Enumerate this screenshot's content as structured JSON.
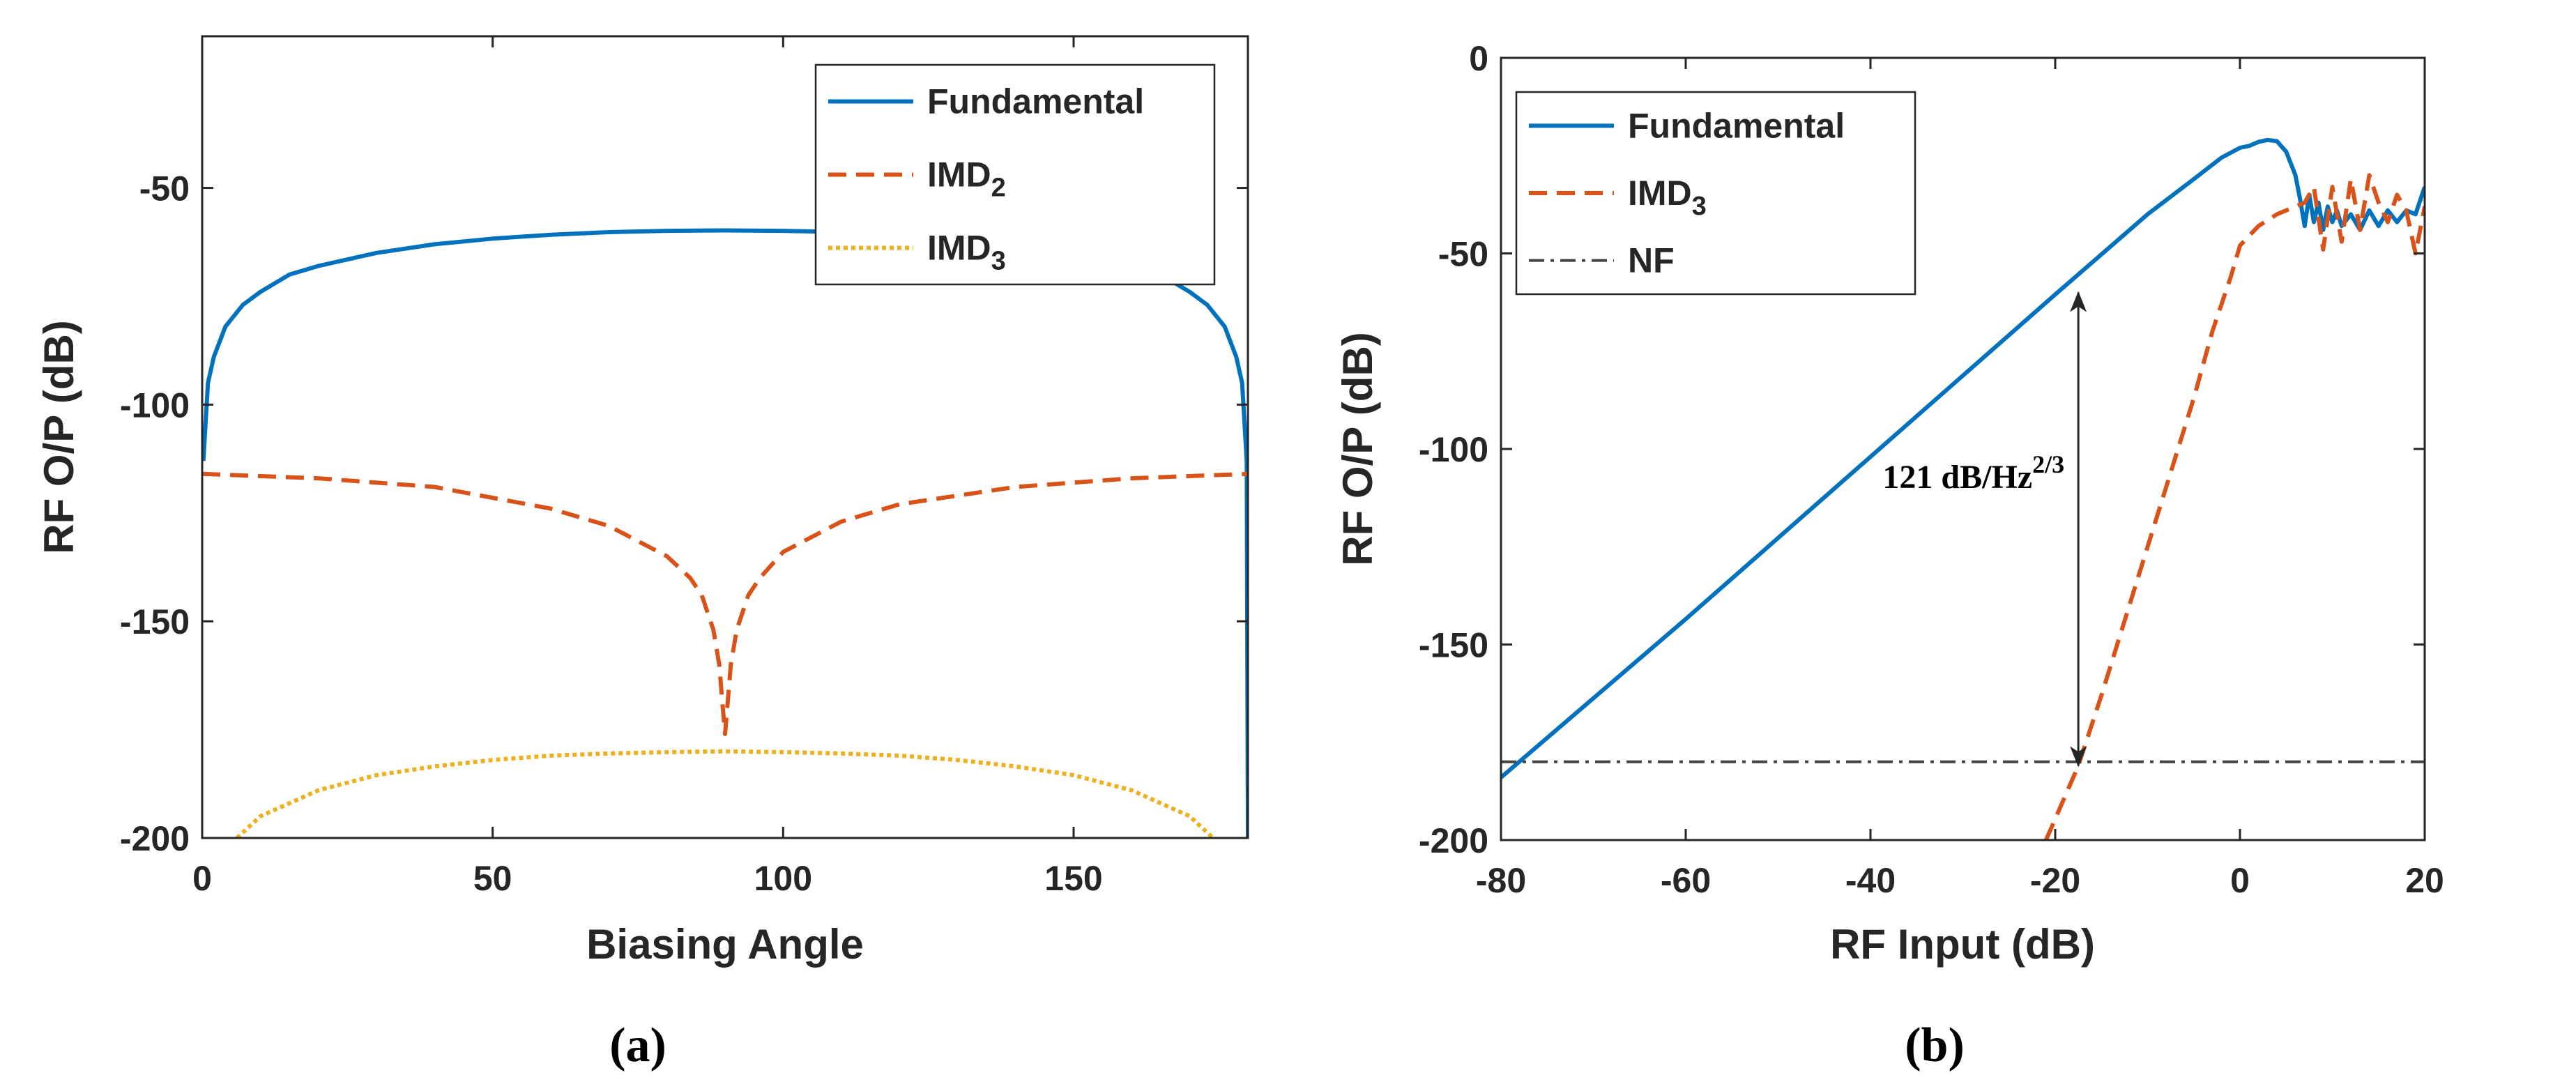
{
  "colors": {
    "fundamental": "#0072bd",
    "imd2": "#d95319",
    "imd3_a": "#edb120",
    "imd3_b": "#d95319",
    "nf": "#444444",
    "axis": "#262626"
  },
  "chart_data": [
    {
      "type": "line",
      "caption": "(a)",
      "xlabel": "Biasing Angle",
      "ylabel": "RF O/P (dB)",
      "xlim": [
        0,
        180
      ],
      "ylim": [
        -200,
        -15
      ],
      "xticks": [
        0,
        50,
        100,
        150
      ],
      "yticks": [
        -200,
        -150,
        -100,
        -50
      ],
      "grid": false,
      "legend_position": "top-right",
      "series": [
        {
          "name": "Fundamental",
          "style": "solid",
          "x": [
            0.2,
            1,
            2,
            4,
            7,
            10,
            15,
            20,
            30,
            40,
            50,
            60,
            70,
            80,
            90,
            100,
            110,
            120,
            130,
            140,
            150,
            160,
            165,
            170,
            173,
            176,
            178,
            179,
            179.8,
            180
          ],
          "y": [
            -113,
            -95,
            -89,
            -82,
            -77,
            -74,
            -70,
            -68,
            -65,
            -63,
            -61.7,
            -60.8,
            -60.2,
            -59.9,
            -59.8,
            -59.9,
            -60.2,
            -60.8,
            -61.7,
            -63,
            -65,
            -68,
            -70,
            -74,
            -77,
            -82,
            -89,
            -95,
            -113,
            -200
          ]
        },
        {
          "name": "IMD",
          "name_sub": "2",
          "style": "dashed",
          "x": [
            0,
            20,
            40,
            60,
            70,
            80,
            84,
            86,
            88,
            89,
            89.5,
            90,
            90.5,
            91,
            92,
            94,
            96,
            100,
            110,
            120,
            140,
            160,
            180
          ],
          "y": [
            -116,
            -117,
            -119,
            -124,
            -128,
            -135,
            -140,
            -144,
            -152,
            -160,
            -168,
            -176,
            -168,
            -160,
            -152,
            -144,
            -140,
            -134,
            -127,
            -123,
            -119,
            -117,
            -116
          ]
        },
        {
          "name": "IMD",
          "name_sub": "3",
          "style": "dotted",
          "x": [
            6,
            10,
            20,
            30,
            40,
            50,
            60,
            70,
            80,
            90,
            100,
            110,
            120,
            130,
            140,
            150,
            160,
            170,
            174
          ],
          "y": [
            -200,
            -195,
            -189,
            -185.5,
            -183.5,
            -182,
            -181,
            -180.5,
            -180.2,
            -180,
            -180.2,
            -180.5,
            -181,
            -182,
            -183.5,
            -185.5,
            -189,
            -195,
            -200
          ]
        }
      ]
    },
    {
      "type": "line",
      "caption": "(b)",
      "xlabel": "RF Input (dB)",
      "ylabel": "RF O/P (dB)",
      "xlim": [
        -80,
        20
      ],
      "ylim": [
        -200,
        0
      ],
      "xticks": [
        -80,
        -60,
        -40,
        -20,
        0,
        20
      ],
      "yticks": [
        -200,
        -150,
        -100,
        -50,
        0
      ],
      "grid": false,
      "legend_position": "top-left",
      "annotation": {
        "text": "121 dB/Hz",
        "sup": "2/3",
        "arrow_x": -17.5,
        "arrow_y_top": -60,
        "arrow_y_bottom": -181
      },
      "series": [
        {
          "name": "Fundamental",
          "style": "solid",
          "x": [
            -80,
            -60,
            -40,
            -20,
            -10,
            -5,
            -2,
            0,
            1,
            2,
            3,
            4,
            5,
            6,
            6.5,
            7,
            7.5,
            8,
            8.5,
            9,
            9.5,
            10,
            10.5,
            11,
            12,
            13,
            14,
            15,
            16,
            17,
            18,
            19,
            20
          ],
          "y": [
            -184,
            -143.5,
            -102,
            -60.5,
            -40,
            -31,
            -25.5,
            -23,
            -22.5,
            -21.5,
            -21,
            -21.3,
            -24,
            -30,
            -36,
            -43,
            -35,
            -42,
            -37,
            -44,
            -38,
            -42,
            -39,
            -43,
            -40,
            -44,
            -39,
            -43,
            -39,
            -42,
            -39,
            -40,
            -33
          ]
        },
        {
          "name": "IMD",
          "name_sub": "3",
          "style": "dashed",
          "x": [
            -21,
            -17.5,
            -15,
            -10,
            -5,
            -3,
            -1,
            0,
            2,
            4,
            6,
            7,
            8,
            9,
            10,
            11,
            12,
            13,
            14,
            15,
            16,
            17,
            18,
            19,
            20
          ],
          "y": [
            -200,
            -181,
            -163,
            -125,
            -87,
            -70,
            -56,
            -48,
            -43,
            -40,
            -38,
            -37,
            -33,
            -49,
            -33,
            -47,
            -31,
            -44,
            -30,
            -37,
            -42,
            -35,
            -39,
            -50,
            -38
          ]
        },
        {
          "name": "NF",
          "style": "dashdot",
          "x": [
            -80,
            20
          ],
          "y": [
            -180,
            -180
          ]
        }
      ]
    }
  ]
}
